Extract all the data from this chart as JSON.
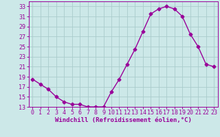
{
  "hours": [
    0,
    1,
    2,
    3,
    4,
    5,
    6,
    7,
    8,
    9,
    10,
    11,
    12,
    13,
    14,
    15,
    16,
    17,
    18,
    19,
    20,
    21,
    22,
    23
  ],
  "windchill": [
    18.5,
    17.5,
    16.5,
    15.0,
    14.0,
    13.5,
    13.5,
    13.0,
    13.0,
    13.0,
    16.0,
    18.5,
    21.5,
    24.5,
    28.0,
    31.5,
    32.5,
    33.0,
    32.5,
    31.0,
    27.5,
    25.0,
    21.5,
    21.0
  ],
  "line_color": "#990099",
  "marker": "D",
  "marker_size": 2.5,
  "bg_color": "#cce8e8",
  "grid_color": "#aacccc",
  "xlabel": "Windchill (Refroidissement éolien,°C)",
  "xlim": [
    -0.5,
    23.5
  ],
  "ylim": [
    13,
    34
  ],
  "yticks": [
    13,
    15,
    17,
    19,
    21,
    23,
    25,
    27,
    29,
    31,
    33
  ],
  "xtick_labels": [
    "0",
    "1",
    "2",
    "3",
    "4",
    "5",
    "6",
    "7",
    "8",
    "9",
    "10",
    "11",
    "12",
    "13",
    "14",
    "15",
    "16",
    "17",
    "18",
    "19",
    "20",
    "21",
    "22",
    "23"
  ],
  "xlabel_fontsize": 6.5,
  "tick_fontsize": 6,
  "line_width": 1.0
}
